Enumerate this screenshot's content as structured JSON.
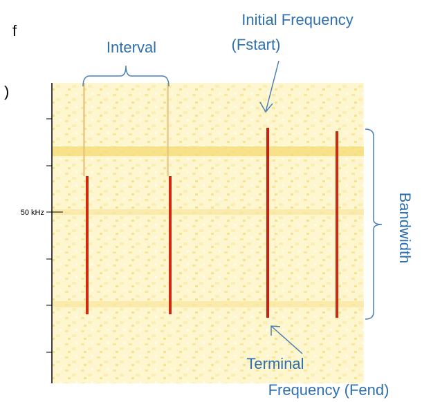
{
  "left_text": {
    "line1": "f",
    "line2": ")"
  },
  "labels": {
    "interval": "Interval",
    "initial_line1": "Initial Frequency",
    "initial_line2": "(Fstart)",
    "terminal_line1": "Terminal",
    "terminal_line2": "Frequency (Fend)",
    "bandwidth": "Bandwidth"
  },
  "axis": {
    "tick_label": "50 kHz"
  }
}
